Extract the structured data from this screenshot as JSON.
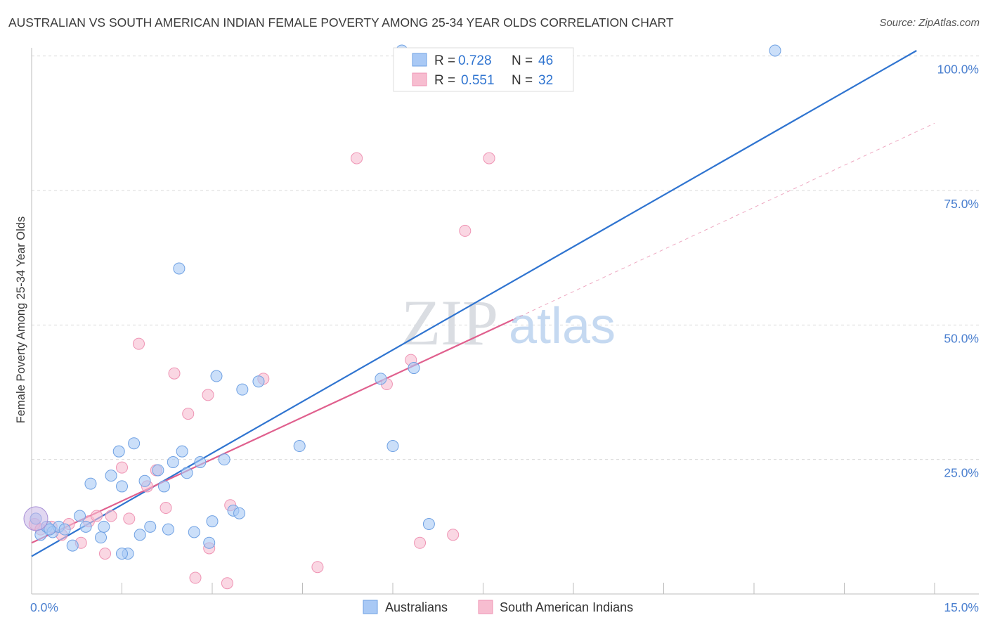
{
  "title": "AUSTRALIAN VS SOUTH AMERICAN INDIAN FEMALE POVERTY AMONG 25-34 YEAR OLDS CORRELATION CHART",
  "source": "Source: ZipAtlas.com",
  "watermark": {
    "zip": "ZIP",
    "atlas": "atlas"
  },
  "legend_top": [
    {
      "r_label": "R =",
      "r_value": "0.728",
      "n_label": "N =",
      "n_value": "46",
      "color": "#a9c9f5"
    },
    {
      "r_label": "R =",
      "r_value": "0.551",
      "n_label": "N =",
      "n_value": "32",
      "color": "#f7b8cd"
    }
  ],
  "colors": {
    "blue_fill": "#a9c9f5",
    "blue_stroke": "#6fa1e3",
    "blue_line": "#2f74d0",
    "pink_fill": "#f7bdd0",
    "pink_stroke": "#ef94b4",
    "pink_line": "#e0608e",
    "tick_text": "#4a7fcf",
    "grid": "#d9d9d9"
  },
  "chart_data": {
    "type": "scatter",
    "title": "AUSTRALIAN VS SOUTH AMERICAN INDIAN FEMALE POVERTY AMONG 25-34 YEAR OLDS CORRELATION CHART",
    "xlabel": "",
    "ylabel": "Female Poverty Among 25-34 Year Olds",
    "xlim": [
      0,
      15
    ],
    "ylim": [
      0,
      101
    ],
    "x_tick_labels": [
      {
        "value": 0,
        "label": "0.0%"
      },
      {
        "value": 15,
        "label": "15.0%"
      }
    ],
    "y_tick_labels": [
      {
        "value": 25,
        "label": "25.0%"
      },
      {
        "value": 50,
        "label": "50.0%"
      },
      {
        "value": 75,
        "label": "75.0%"
      },
      {
        "value": 100,
        "label": "100.0%"
      }
    ],
    "grid": true,
    "legend_position": "bottom-center",
    "series": [
      {
        "name": "Australians",
        "stats": {
          "r": 0.728,
          "n": 46
        },
        "trend": {
          "x": [
            0,
            14.7
          ],
          "y": [
            7.0,
            101.0
          ]
        },
        "points": [
          [
            0.07,
            14.0
          ],
          [
            0.15,
            11.0
          ],
          [
            0.25,
            12.5
          ],
          [
            0.35,
            11.5
          ],
          [
            0.45,
            12.5
          ],
          [
            0.55,
            12.0
          ],
          [
            0.68,
            9.0
          ],
          [
            0.8,
            14.5
          ],
          [
            0.9,
            12.5
          ],
          [
            0.98,
            20.5
          ],
          [
            1.15,
            10.5
          ],
          [
            1.2,
            12.5
          ],
          [
            1.32,
            22.0
          ],
          [
            1.45,
            26.5
          ],
          [
            1.5,
            20.0
          ],
          [
            1.6,
            7.5
          ],
          [
            1.7,
            28.0
          ],
          [
            1.8,
            11.0
          ],
          [
            1.88,
            21.0
          ],
          [
            1.97,
            12.5
          ],
          [
            2.1,
            23.0
          ],
          [
            2.2,
            20.0
          ],
          [
            2.27,
            12.0
          ],
          [
            2.35,
            24.5
          ],
          [
            2.45,
            60.5
          ],
          [
            2.5,
            26.5
          ],
          [
            2.58,
            22.5
          ],
          [
            2.7,
            11.5
          ],
          [
            2.8,
            24.5
          ],
          [
            2.95,
            9.5
          ],
          [
            3.0,
            13.5
          ],
          [
            3.07,
            40.5
          ],
          [
            3.2,
            25.0
          ],
          [
            3.35,
            15.5
          ],
          [
            3.45,
            15.0
          ],
          [
            3.5,
            38.0
          ],
          [
            3.77,
            39.5
          ],
          [
            4.45,
            27.5
          ],
          [
            5.8,
            40.0
          ],
          [
            6.0,
            27.5
          ],
          [
            6.15,
            101.0
          ],
          [
            6.35,
            42.0
          ],
          [
            6.6,
            13.0
          ],
          [
            12.35,
            101.0
          ],
          [
            1.5,
            7.5
          ],
          [
            0.3,
            12.0
          ]
        ]
      },
      {
        "name": "South American Indians",
        "stats": {
          "r": 0.551,
          "n": 32
        },
        "trend": {
          "x": [
            0,
            8.0
          ],
          "y": [
            9.5,
            51.0
          ]
        },
        "trend_extended": {
          "x": [
            8.0,
            15.0
          ],
          "y": [
            51.0,
            87.5
          ]
        },
        "points": [
          [
            0.05,
            13.0
          ],
          [
            0.33,
            12.5
          ],
          [
            0.5,
            11.0
          ],
          [
            0.62,
            13.0
          ],
          [
            0.82,
            9.5
          ],
          [
            0.95,
            13.5
          ],
          [
            1.08,
            14.5
          ],
          [
            1.22,
            7.5
          ],
          [
            1.32,
            14.5
          ],
          [
            1.5,
            23.5
          ],
          [
            1.62,
            14.0
          ],
          [
            1.78,
            46.5
          ],
          [
            1.92,
            20.0
          ],
          [
            2.07,
            23.0
          ],
          [
            2.23,
            16.0
          ],
          [
            2.37,
            41.0
          ],
          [
            2.6,
            33.5
          ],
          [
            2.72,
            3.0
          ],
          [
            2.93,
            37.0
          ],
          [
            2.95,
            8.5
          ],
          [
            3.25,
            2.0
          ],
          [
            3.3,
            16.5
          ],
          [
            3.85,
            40.0
          ],
          [
            4.75,
            5.0
          ],
          [
            5.4,
            81.0
          ],
          [
            5.9,
            39.0
          ],
          [
            6.3,
            43.5
          ],
          [
            6.45,
            9.5
          ],
          [
            7.0,
            11.0
          ],
          [
            7.2,
            67.5
          ],
          [
            7.6,
            81.0
          ],
          [
            0.15,
            12.0
          ]
        ]
      }
    ]
  },
  "bottom_legend": [
    {
      "label": "Australians",
      "color": "#a9c9f5"
    },
    {
      "label": "South American Indians",
      "color": "#f7bdd0"
    }
  ]
}
